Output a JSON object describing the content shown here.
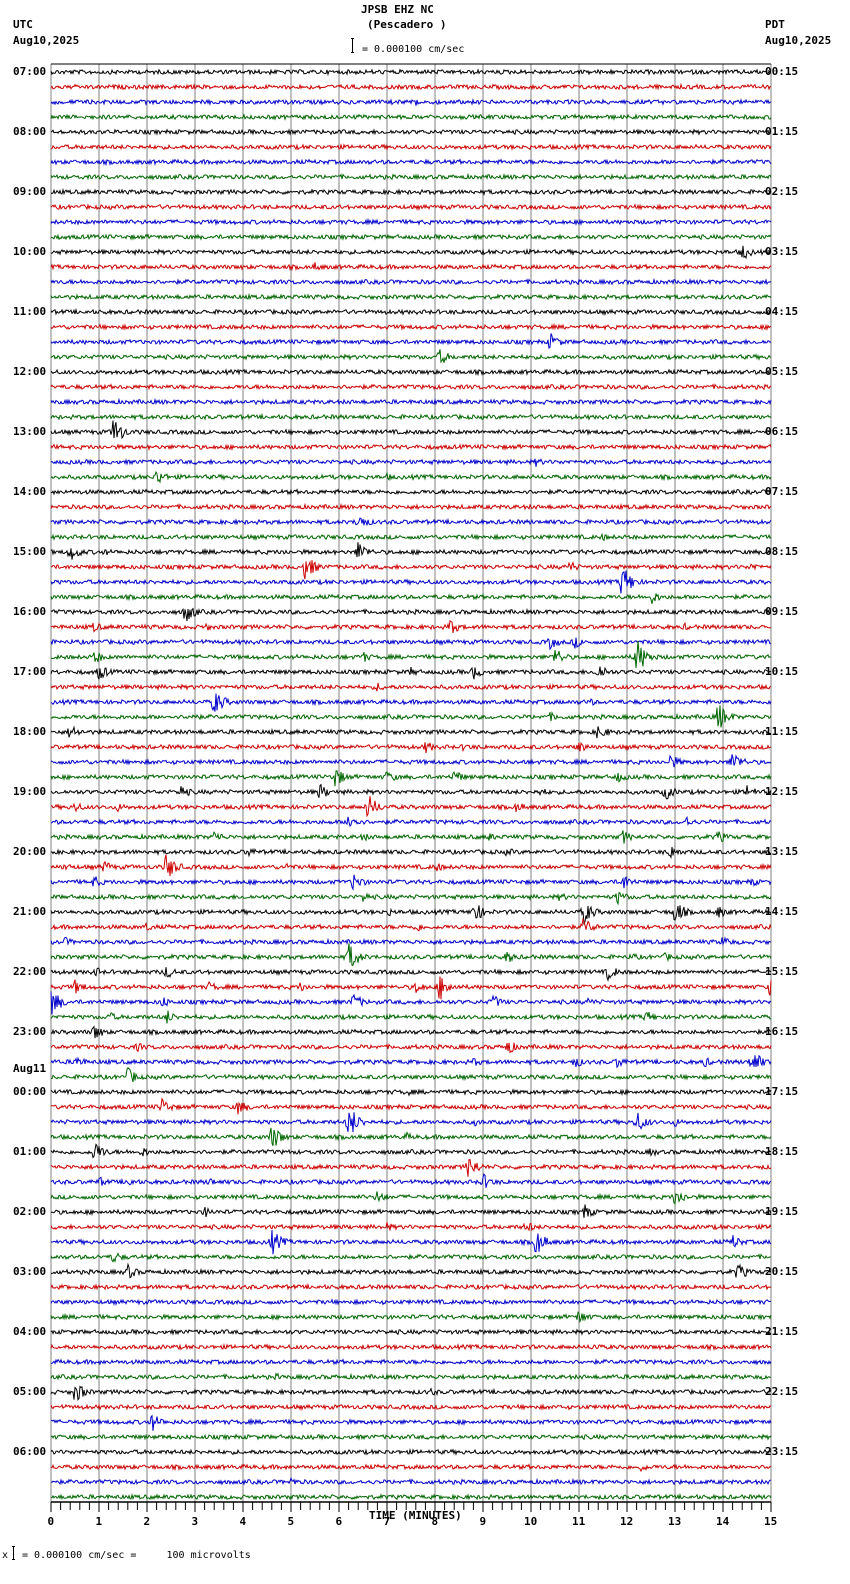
{
  "header": {
    "station": "JPSB EHZ NC",
    "location": "(Pescadero )",
    "scale_text": "= 0.000100 cm/sec",
    "left_tz": "UTC",
    "left_date": "Aug10,2025",
    "right_tz": "PDT",
    "right_date": "Aug10,2025"
  },
  "footer": {
    "scale_text": "= 0.000100 cm/sec =     100 microvolts"
  },
  "day_change_label": "Aug11",
  "colors": {
    "trace_cycle": [
      "#000000",
      "#cc0000",
      "#0000cc",
      "#006600"
    ],
    "grid": "#808080"
  },
  "chart_data": {
    "type": "line",
    "title": "JPSB EHZ NC (Pescadero )",
    "subtitle": "= 0.000100 cm/sec",
    "xlabel": "TIME (MINUTES)",
    "ylabel": "",
    "x_ticks": [
      "0",
      "1",
      "2",
      "3",
      "4",
      "5",
      "6",
      "7",
      "8",
      "9",
      "10",
      "11",
      "12",
      "13",
      "14",
      "15"
    ],
    "xlim": [
      0,
      15
    ],
    "grid": true,
    "traces_per_hour": 4,
    "left_labels": [
      "07:00",
      "08:00",
      "09:00",
      "10:00",
      "11:00",
      "12:00",
      "13:00",
      "14:00",
      "15:00",
      "16:00",
      "17:00",
      "18:00",
      "19:00",
      "20:00",
      "21:00",
      "22:00",
      "23:00",
      "00:00",
      "01:00",
      "02:00",
      "03:00",
      "04:00",
      "05:00",
      "06:00"
    ],
    "right_labels": [
      "00:15",
      "01:15",
      "02:15",
      "03:15",
      "04:15",
      "05:15",
      "06:15",
      "07:15",
      "08:15",
      "09:15",
      "10:15",
      "11:15",
      "12:15",
      "13:15",
      "14:15",
      "15:15",
      "16:15",
      "17:15",
      "18:15",
      "19:15",
      "20:15",
      "21:15",
      "22:15",
      "23:15"
    ],
    "events": [
      [
        2,
        7.6,
        5
      ],
      [
        12,
        14.4,
        9
      ],
      [
        13,
        5.5,
        5
      ],
      [
        18,
        10.4,
        10
      ],
      [
        19,
        8.1,
        9
      ],
      [
        24,
        1.3,
        16
      ],
      [
        26,
        10.1,
        5
      ],
      [
        27,
        2.2,
        9
      ],
      [
        27,
        7.0,
        4
      ],
      [
        30,
        6.4,
        10
      ],
      [
        31,
        11.5,
        4
      ],
      [
        32,
        0.4,
        10
      ],
      [
        32,
        1.1,
        4
      ],
      [
        32,
        4.8,
        4
      ],
      [
        32,
        6.4,
        12
      ],
      [
        33,
        5.3,
        14
      ],
      [
        33,
        10.8,
        7
      ],
      [
        33,
        14.6,
        5
      ],
      [
        34,
        11.9,
        18
      ],
      [
        35,
        12.5,
        8
      ],
      [
        36,
        2.8,
        12
      ],
      [
        37,
        0.9,
        6
      ],
      [
        37,
        3.2,
        5
      ],
      [
        37,
        8.3,
        9
      ],
      [
        37,
        13.2,
        4
      ],
      [
        38,
        10.4,
        8
      ],
      [
        38,
        10.9,
        7
      ],
      [
        39,
        0.9,
        8
      ],
      [
        39,
        6.5,
        6
      ],
      [
        39,
        10.5,
        10
      ],
      [
        39,
        12.2,
        20
      ],
      [
        40,
        1.0,
        9
      ],
      [
        40,
        7.5,
        5
      ],
      [
        40,
        8.8,
        8
      ],
      [
        40,
        11.4,
        10
      ],
      [
        41,
        6.8,
        5
      ],
      [
        42,
        3.4,
        14
      ],
      [
        42,
        11.2,
        5
      ],
      [
        43,
        2.9,
        6
      ],
      [
        43,
        10.4,
        5
      ],
      [
        43,
        13.9,
        16
      ],
      [
        44,
        0.4,
        9
      ],
      [
        44,
        11.4,
        9
      ],
      [
        45,
        7.8,
        7
      ],
      [
        45,
        8.6,
        5
      ],
      [
        45,
        11.0,
        7
      ],
      [
        46,
        12.9,
        9
      ],
      [
        46,
        14.2,
        12
      ],
      [
        47,
        5.9,
        12
      ],
      [
        47,
        7.0,
        7
      ],
      [
        47,
        8.4,
        8
      ],
      [
        47,
        11.8,
        6
      ],
      [
        48,
        2.7,
        8
      ],
      [
        48,
        5.6,
        9
      ],
      [
        48,
        10.2,
        5
      ],
      [
        48,
        12.8,
        9
      ],
      [
        48,
        14.5,
        8
      ],
      [
        49,
        0.5,
        6
      ],
      [
        49,
        1.4,
        5
      ],
      [
        49,
        6.6,
        14
      ],
      [
        49,
        9.7,
        6
      ],
      [
        50,
        6.2,
        10
      ],
      [
        50,
        13.2,
        7
      ],
      [
        51,
        3.4,
        7
      ],
      [
        51,
        6.5,
        5
      ],
      [
        51,
        9.1,
        5
      ],
      [
        51,
        11.9,
        8
      ],
      [
        51,
        13.9,
        7
      ],
      [
        52,
        4.1,
        6
      ],
      [
        52,
        9.5,
        5
      ],
      [
        52,
        12.9,
        8
      ],
      [
        53,
        0.3,
        5
      ],
      [
        53,
        1.1,
        7
      ],
      [
        53,
        2.4,
        15
      ],
      [
        53,
        4.9,
        5
      ],
      [
        53,
        8.0,
        6
      ],
      [
        54,
        0.9,
        7
      ],
      [
        54,
        6.3,
        10
      ],
      [
        54,
        11.9,
        10
      ],
      [
        54,
        14.6,
        5
      ],
      [
        55,
        6.5,
        6
      ],
      [
        55,
        10.6,
        5
      ],
      [
        55,
        11.8,
        8
      ],
      [
        56,
        7.0,
        5
      ],
      [
        56,
        8.8,
        12
      ],
      [
        56,
        11.1,
        13
      ],
      [
        56,
        13.0,
        13
      ],
      [
        56,
        13.9,
        7
      ],
      [
        57,
        2.0,
        5
      ],
      [
        57,
        7.6,
        6
      ],
      [
        57,
        11.1,
        10
      ],
      [
        58,
        0.3,
        5
      ],
      [
        58,
        14.0,
        7
      ],
      [
        59,
        6.2,
        16
      ],
      [
        59,
        9.5,
        7
      ],
      [
        59,
        12.1,
        5
      ],
      [
        59,
        12.8,
        5
      ],
      [
        60,
        0.9,
        6
      ],
      [
        60,
        2.4,
        7
      ],
      [
        60,
        11.6,
        9
      ],
      [
        61,
        0.5,
        8
      ],
      [
        61,
        3.3,
        6
      ],
      [
        61,
        5.2,
        6
      ],
      [
        61,
        7.6,
        7
      ],
      [
        61,
        8.1,
        15
      ],
      [
        61,
        15.0,
        14
      ],
      [
        62,
        0.0,
        16
      ],
      [
        62,
        2.3,
        7
      ],
      [
        62,
        6.3,
        9
      ],
      [
        62,
        9.2,
        8
      ],
      [
        62,
        11.2,
        5
      ],
      [
        63,
        1.2,
        6
      ],
      [
        63,
        2.4,
        8
      ],
      [
        63,
        12.4,
        7
      ],
      [
        64,
        0.9,
        9
      ],
      [
        65,
        1.8,
        5
      ],
      [
        65,
        9.5,
        9
      ],
      [
        66,
        0.5,
        8
      ],
      [
        66,
        8.8,
        5
      ],
      [
        66,
        10.9,
        7
      ],
      [
        66,
        11.8,
        7
      ],
      [
        66,
        13.6,
        6
      ],
      [
        66,
        14.6,
        14
      ],
      [
        67,
        1.6,
        10
      ],
      [
        68,
        7.4,
        5
      ],
      [
        69,
        2.3,
        10
      ],
      [
        69,
        3.9,
        9
      ],
      [
        70,
        6.2,
        18
      ],
      [
        70,
        8.8,
        5
      ],
      [
        70,
        12.2,
        12
      ],
      [
        70,
        13.0,
        5
      ],
      [
        71,
        4.6,
        14
      ],
      [
        71,
        7.4,
        5
      ],
      [
        72,
        0.9,
        12
      ],
      [
        72,
        1.9,
        6
      ],
      [
        72,
        12.5,
        5
      ],
      [
        73,
        8.7,
        13
      ],
      [
        74,
        1.0,
        6
      ],
      [
        74,
        1.6,
        6
      ],
      [
        74,
        3.3,
        5
      ],
      [
        74,
        9.0,
        9
      ],
      [
        75,
        6.8,
        8
      ],
      [
        75,
        13.0,
        11
      ],
      [
        76,
        3.2,
        6
      ],
      [
        76,
        11.1,
        9
      ],
      [
        77,
        7.0,
        5
      ],
      [
        77,
        9.9,
        7
      ],
      [
        78,
        4.6,
        14
      ],
      [
        78,
        10.1,
        14
      ],
      [
        78,
        14.2,
        8
      ],
      [
        79,
        1.3,
        7
      ],
      [
        80,
        1.6,
        8
      ],
      [
        80,
        14.3,
        10
      ],
      [
        83,
        11.0,
        8
      ],
      [
        85,
        11.3,
        5
      ],
      [
        87,
        4.7,
        4
      ],
      [
        88,
        0.5,
        12
      ],
      [
        88,
        7.9,
        5
      ],
      [
        90,
        2.1,
        10
      ],
      [
        93,
        12.3,
        5
      ],
      [
        94,
        5.0,
        5
      ]
    ]
  }
}
